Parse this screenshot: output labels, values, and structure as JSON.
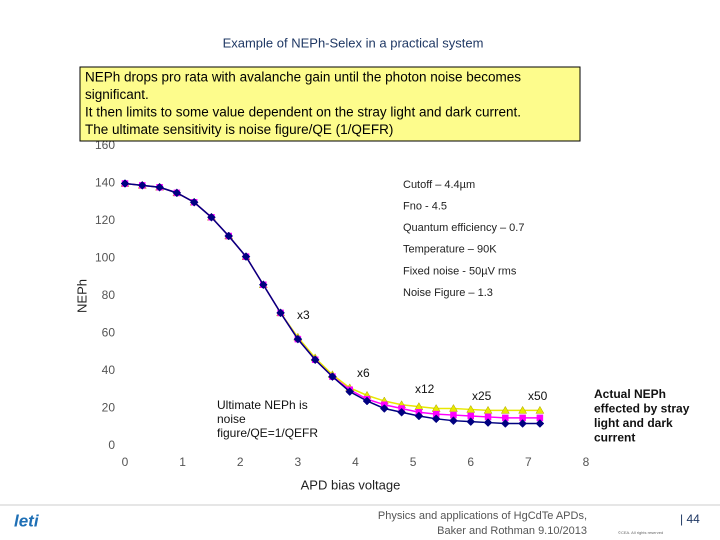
{
  "slide": {
    "title": "Example of NEPh-Selex in a practical system",
    "callout": [
      "NEPh drops pro rata with avalanche gain until the photon noise becomes",
      "significant.",
      "It then limits to some value dependent on the stray light and dark current.",
      "The ultimate sensitivity is noise figure/QE (1/QEFR)"
    ],
    "footer": {
      "logo": "leti",
      "citation": [
        "Physics and applications of HgCdTe APDs,",
        "Baker and Rothman 9.10/2013"
      ],
      "page": "| 44",
      "copyright": "©CEA. All rights reserved"
    }
  },
  "chart_data": {
    "type": "line",
    "x": [
      0,
      0.3,
      0.6,
      0.9,
      1.2,
      1.5,
      1.8,
      2.1,
      2.4,
      2.7,
      3.0,
      3.3,
      3.6,
      3.9,
      4.2,
      4.5,
      4.8,
      5.1,
      5.4,
      5.7,
      6.0,
      6.3,
      6.6,
      6.9,
      7.2
    ],
    "series": [
      {
        "color": "#000080",
        "marker": "diamond",
        "values": [
          140,
          139,
          138,
          135,
          130,
          122,
          112,
          101,
          86,
          71,
          57,
          46,
          37,
          29,
          24,
          20,
          18,
          16,
          14.5,
          13.5,
          13,
          12.5,
          12,
          12,
          12
        ]
      },
      {
        "color": "#ff00ff",
        "marker": "square",
        "values": [
          140,
          139,
          138,
          135,
          130,
          122,
          112,
          101,
          86,
          71,
          57,
          46,
          37,
          30,
          25,
          22,
          20,
          18,
          17,
          16.5,
          16,
          15.5,
          15,
          15,
          15
        ]
      },
      {
        "color": "#e8e800",
        "marker": "triangle",
        "values": [
          140,
          139,
          138,
          135,
          130,
          122,
          112,
          101,
          86,
          71,
          58,
          47,
          38,
          31,
          27,
          24,
          22,
          21,
          20,
          20,
          19.5,
          19,
          19,
          19,
          19
        ]
      }
    ],
    "xlim": [
      0,
      8
    ],
    "xticks": [
      0,
      1,
      2,
      3,
      4,
      5,
      6,
      7,
      8
    ],
    "ylim": [
      0,
      160
    ],
    "yticks": [
      0,
      20,
      40,
      60,
      80,
      100,
      120,
      140,
      160
    ],
    "xlabel": "APD bias voltage",
    "ylabel": "NEPh",
    "annotations": [
      "x3",
      "x6",
      "x12",
      "x25",
      "x50"
    ],
    "info_box": [
      "Cutoff – 4.4µm",
      "Fno - 4.5",
      "Quantum efficiency – 0.7",
      "Temperature – 90K",
      "Fixed noise - 50µV rms",
      "Noise Figure – 1.3"
    ],
    "ultimate_note": [
      "Ultimate NEPh is",
      "noise",
      "figure/QE=1/QEFR"
    ],
    "actual_note": [
      "Actual NEPh",
      "effected by stray",
      "light and dark",
      "current"
    ]
  }
}
